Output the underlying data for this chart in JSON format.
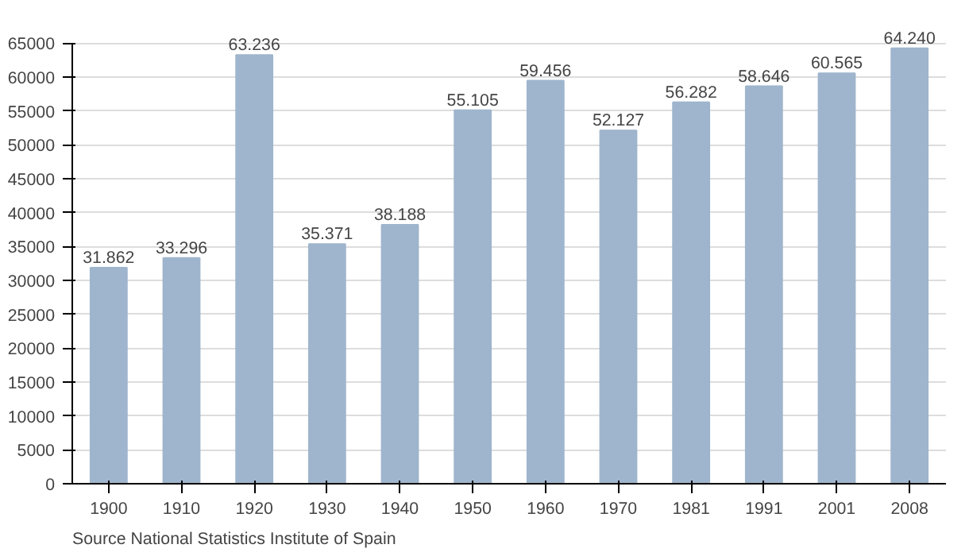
{
  "chart_data": {
    "type": "bar",
    "categories": [
      "1900",
      "1910",
      "1920",
      "1930",
      "1940",
      "1950",
      "1960",
      "1970",
      "1981",
      "1991",
      "2001",
      "2008"
    ],
    "values": [
      31862,
      33296,
      63236,
      35371,
      38188,
      55105,
      59456,
      52127,
      56282,
      58646,
      60565,
      64240
    ],
    "value_labels": [
      "31.862",
      "33.296",
      "63.236",
      "35.371",
      "38.188",
      "55.105",
      "59.456",
      "52.127",
      "56.282",
      "58.646",
      "60.565",
      "64.240"
    ],
    "color": "#9fb5cd",
    "ylim": [
      0,
      65000
    ],
    "yticks": [
      0,
      5000,
      10000,
      15000,
      20000,
      25000,
      30000,
      35000,
      40000,
      45000,
      50000,
      55000,
      60000,
      65000
    ],
    "grid": "y",
    "annotations": [
      "Source National Statistics Institute of Spain"
    ]
  }
}
